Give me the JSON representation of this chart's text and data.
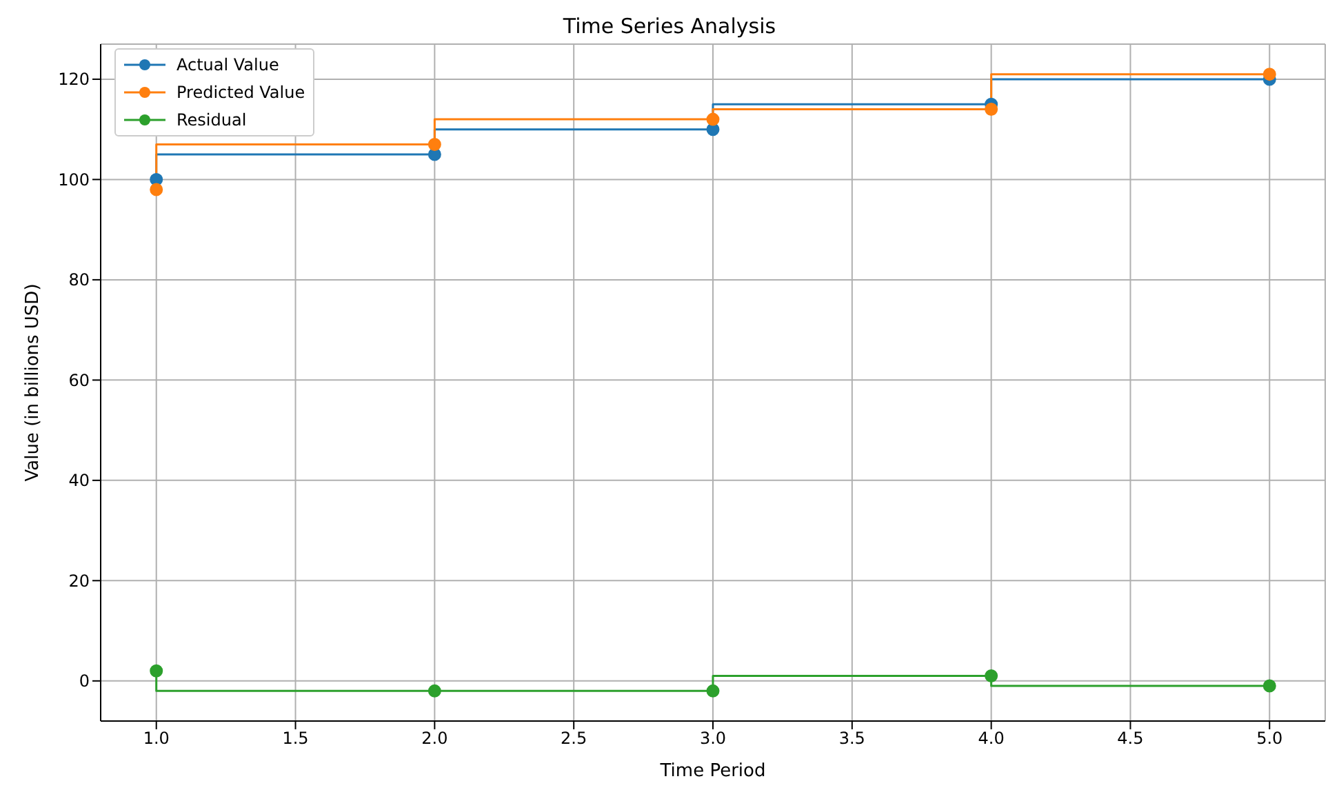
{
  "chart_data": {
    "type": "step",
    "title": "Time Series Analysis",
    "xlabel": "Time Period",
    "ylabel": "Value (in billions USD)",
    "x": [
      1,
      2,
      3,
      4,
      5
    ],
    "series": [
      {
        "name": "Actual Value",
        "color": "#1f77b4",
        "values": [
          100,
          105,
          110,
          115,
          120
        ]
      },
      {
        "name": "Predicted Value",
        "color": "#ff7f0e",
        "values": [
          98,
          107,
          112,
          114,
          121
        ]
      },
      {
        "name": "Residual",
        "color": "#2ca02c",
        "values": [
          2,
          -2,
          -2,
          1,
          -1
        ]
      }
    ],
    "xlim": [
      0.8,
      5.2
    ],
    "xticks": [
      {
        "value": 1,
        "label": "1.0"
      },
      1.5,
      {
        "value": 2,
        "label": "2.0"
      },
      2.5,
      {
        "value": 3,
        "label": "3.0"
      },
      3.5,
      {
        "value": 4,
        "label": "4.0"
      },
      4.5,
      {
        "value": 5,
        "label": "5.0"
      }
    ],
    "ylim": [
      -8,
      127
    ],
    "yticks": [
      0,
      20,
      40,
      60,
      80,
      100,
      120
    ],
    "grid": true,
    "legend": "top left",
    "marker": "circle",
    "line_style": "solid"
  }
}
